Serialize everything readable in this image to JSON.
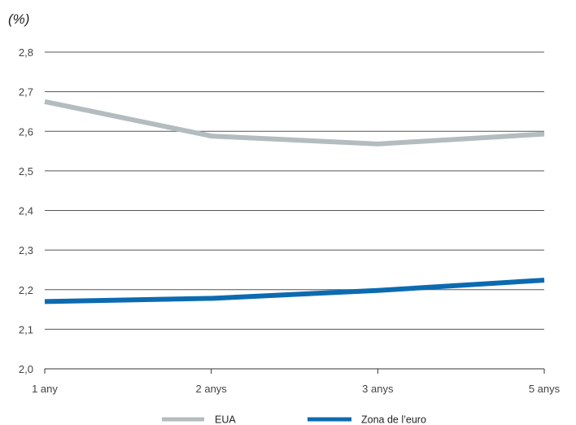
{
  "chart_data": {
    "type": "line",
    "unit_label": "(%)",
    "title": "",
    "xlabel": "",
    "ylabel": "",
    "categories": [
      "1 any",
      "2 anys",
      "3 anys",
      "5 anys"
    ],
    "ylim": [
      2.0,
      2.8
    ],
    "yticks": [
      "2,0",
      "2,1",
      "2,2",
      "2,3",
      "2,4",
      "2,5",
      "2,6",
      "2,7",
      "2,8"
    ],
    "grid": true,
    "legend_position": "bottom",
    "series": [
      {
        "name": "EUA",
        "values": [
          2.675,
          2.588,
          2.568,
          2.593
        ],
        "color": "#b3bcbe"
      },
      {
        "name": "Zona de l’euro",
        "values": [
          2.17,
          2.178,
          2.198,
          2.224
        ],
        "color": "#0c6bb0"
      }
    ]
  }
}
